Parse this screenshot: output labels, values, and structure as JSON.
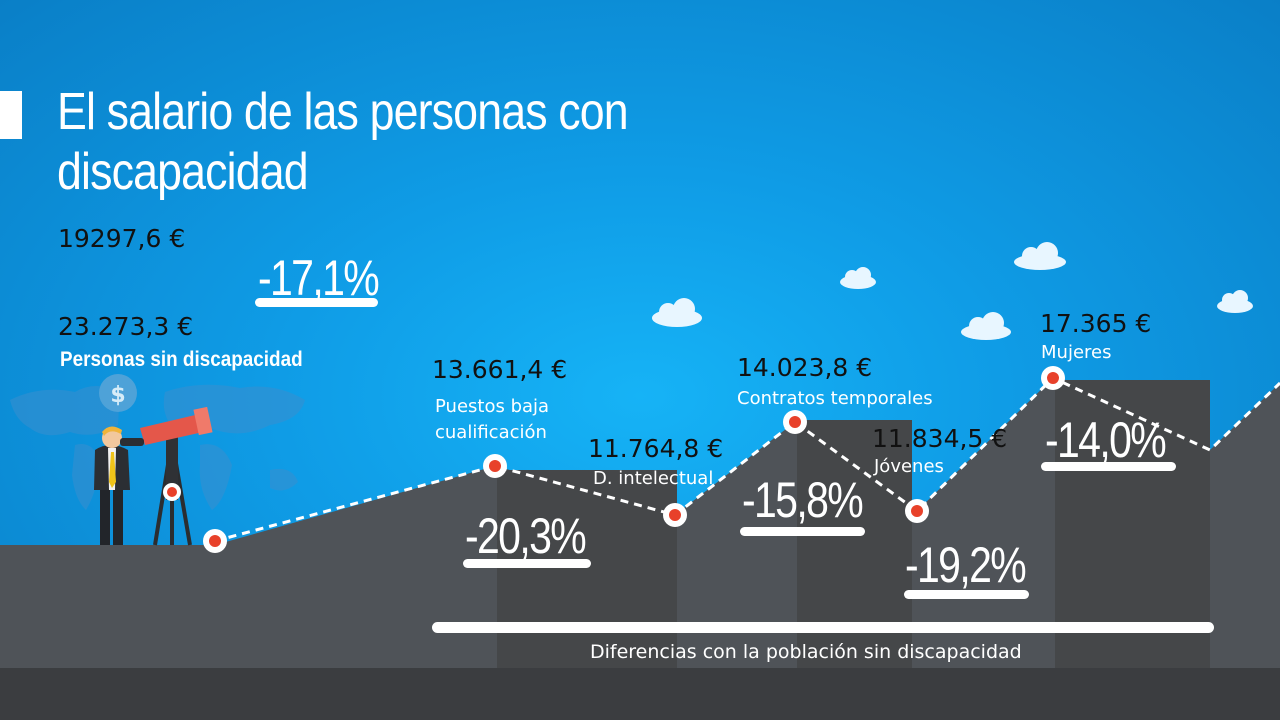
{
  "title": "El salario de las personas con discapacidad",
  "labels": {
    "sin_discapacidad_valor": "23.273,3 €",
    "sin_discapacidad_texto": "Personas sin discapacidad",
    "diferencias": "Diferencias con la población sin discapacidad"
  },
  "colors": {
    "background": "#0f9ce6",
    "ground": "#4f5358",
    "ground_dark": "#3b3d40",
    "dot": "#e8412a",
    "telescope": "#e4574a"
  },
  "chart_data": {
    "type": "line",
    "title": "El salario de las personas con discapacidad",
    "reference": {
      "name": "Personas sin discapacidad",
      "value": 23273.3,
      "label": "23.273,3 €"
    },
    "points": [
      {
        "category": "",
        "value": 19297.6,
        "value_label": "19297,6 €",
        "diff_label": "-17,1%",
        "diff": -17.1
      },
      {
        "category": "Puestos baja cualificación",
        "value": 13661.4,
        "value_label": "13.661,4 €",
        "diff_label": "-20,3%",
        "diff": -20.3
      },
      {
        "category": "D. intelectual",
        "value": 11764.8,
        "value_label": "11.764,8 €",
        "diff_label": "",
        "diff": null
      },
      {
        "category": "Contratos temporales",
        "value": 14023.8,
        "value_label": "14.023,8 €",
        "diff_label": "-15,8%",
        "diff": -15.8
      },
      {
        "category": "Jóvenes",
        "value": 11834.5,
        "value_label": "11.834,5 €",
        "diff_label": "-19,2%",
        "diff": -19.2
      },
      {
        "category": "Mujeres",
        "value": 17365,
        "value_label": "17.365 €",
        "diff_label": "-14,0%",
        "diff": -14.0
      }
    ],
    "xlabel": "",
    "ylabel": ""
  }
}
